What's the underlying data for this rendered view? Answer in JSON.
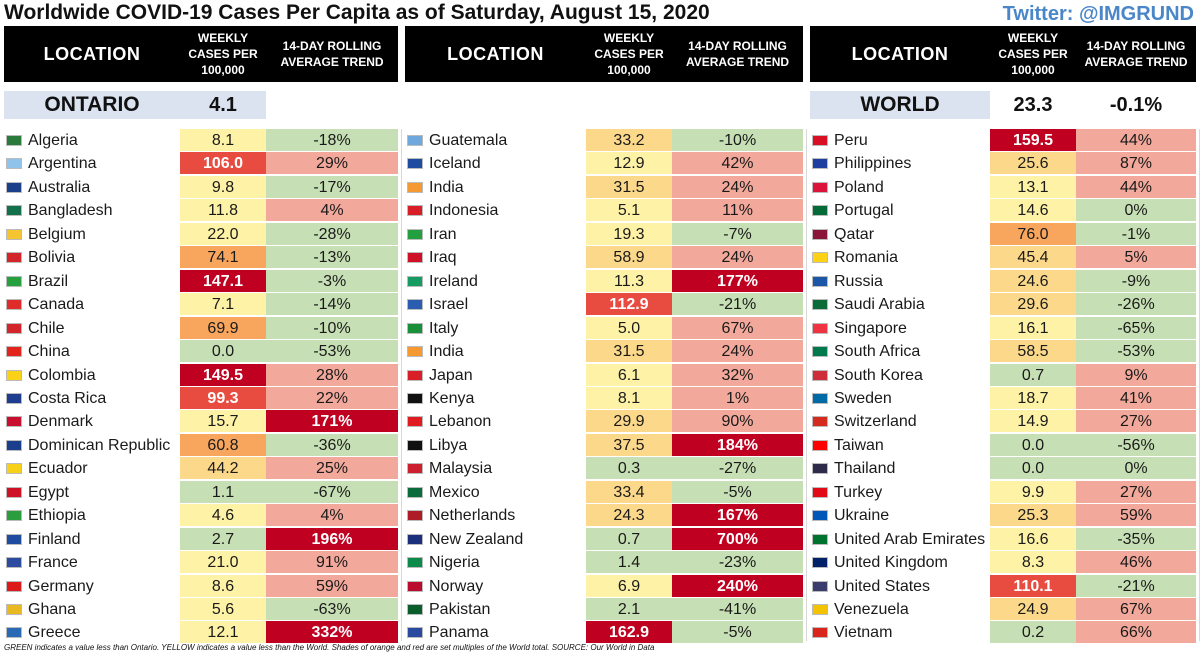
{
  "title": "Worldwide COVID-19 Cases Per Capita as of Saturday, August 15, 2020",
  "twitter": "Twitter: @IMGRUND",
  "headers": {
    "location": "LOCATION",
    "weekly": [
      "WEEKLY",
      "CASES PER",
      "100,000"
    ],
    "trend": [
      "14-DAY ROLLING",
      "AVERAGE TREND"
    ]
  },
  "ontario": {
    "label": "ONTARIO",
    "value": "4.1"
  },
  "world": {
    "label": "WORLD",
    "value": "23.3",
    "trend": "-0.1%"
  },
  "colors": {
    "green": "#c6dfb4",
    "yellow": "#fef2a6",
    "orange_light": "#fcd98a",
    "orange": "#f8a65e",
    "red_light": "#f2a89a",
    "red": "#e84b3f",
    "dark_red": "#c00020"
  },
  "columns": [
    {
      "rows": [
        {
          "name": "Algeria",
          "cases": "8.1",
          "cc": "yellow",
          "trend": "-18%",
          "tc": "green",
          "flag": "#2a7a3b"
        },
        {
          "name": "Argentina",
          "cases": "106.0",
          "cc": "red",
          "trend": "29%",
          "tc": "red_light",
          "flag": "#8fc3ea"
        },
        {
          "name": "Australia",
          "cases": "9.8",
          "cc": "yellow",
          "trend": "-17%",
          "tc": "green",
          "flag": "#1c3f8a"
        },
        {
          "name": "Bangladesh",
          "cases": "11.8",
          "cc": "yellow",
          "trend": "4%",
          "tc": "red_light",
          "flag": "#12704a"
        },
        {
          "name": "Belgium",
          "cases": "22.0",
          "cc": "yellow",
          "trend": "-28%",
          "tc": "green",
          "flag": "#f4c531"
        },
        {
          "name": "Bolivia",
          "cases": "74.1",
          "cc": "orange",
          "trend": "-13%",
          "tc": "green",
          "flag": "#d3262a"
        },
        {
          "name": "Brazil",
          "cases": "147.1",
          "cc": "dark_red",
          "trend": "-3%",
          "tc": "green",
          "flag": "#27a040"
        },
        {
          "name": "Canada",
          "cases": "7.1",
          "cc": "yellow",
          "trend": "-14%",
          "tc": "green",
          "flag": "#e02b2b"
        },
        {
          "name": "Chile",
          "cases": "69.9",
          "cc": "orange",
          "trend": "-10%",
          "tc": "green",
          "flag": "#d3262a"
        },
        {
          "name": "China",
          "cases": "0.0",
          "cc": "green",
          "trend": "-53%",
          "tc": "green",
          "flag": "#e1251b"
        },
        {
          "name": "Colombia",
          "cases": "149.5",
          "cc": "dark_red",
          "trend": "28%",
          "tc": "red_light",
          "flag": "#f9d116"
        },
        {
          "name": "Costa Rica",
          "cases": "99.3",
          "cc": "red",
          "trend": "22%",
          "tc": "red_light",
          "flag": "#1f3d8f"
        },
        {
          "name": "Denmark",
          "cases": "15.7",
          "cc": "yellow",
          "trend": "171%",
          "tc": "dark_red",
          "flag": "#c8102e"
        },
        {
          "name": "Dominican Republic",
          "cases": "60.8",
          "cc": "orange",
          "trend": "-36%",
          "tc": "green",
          "flag": "#1a3e8c"
        },
        {
          "name": "Ecuador",
          "cases": "44.2",
          "cc": "orange_light",
          "trend": "25%",
          "tc": "red_light",
          "flag": "#f7d117"
        },
        {
          "name": "Egypt",
          "cases": "1.1",
          "cc": "green",
          "trend": "-67%",
          "tc": "green",
          "flag": "#ce1126"
        },
        {
          "name": "Ethiopia",
          "cases": "4.6",
          "cc": "yellow",
          "trend": "4%",
          "tc": "red_light",
          "flag": "#2a9d3f"
        },
        {
          "name": "Finland",
          "cases": "2.7",
          "cc": "green",
          "trend": "196%",
          "tc": "dark_red",
          "flag": "#1f4c9f"
        },
        {
          "name": "France",
          "cases": "21.0",
          "cc": "yellow",
          "trend": "91%",
          "tc": "red_light",
          "flag": "#2c4aa0"
        },
        {
          "name": "Germany",
          "cases": "8.6",
          "cc": "yellow",
          "trend": "59%",
          "tc": "red_light",
          "flag": "#dd1a1a"
        },
        {
          "name": "Ghana",
          "cases": "5.6",
          "cc": "yellow",
          "trend": "-63%",
          "tc": "green",
          "flag": "#e8b923"
        },
        {
          "name": "Greece",
          "cases": "12.1",
          "cc": "yellow",
          "trend": "332%",
          "tc": "dark_red",
          "flag": "#2a6ab4"
        }
      ]
    },
    {
      "rows": [
        {
          "name": "Guatemala",
          "cases": "33.2",
          "cc": "orange_light",
          "trend": "-10%",
          "tc": "green",
          "flag": "#6fa8dc"
        },
        {
          "name": "Iceland",
          "cases": "12.9",
          "cc": "yellow",
          "trend": "42%",
          "tc": "red_light",
          "flag": "#1f4c9f"
        },
        {
          "name": "India",
          "cases": "31.5",
          "cc": "orange_light",
          "trend": "24%",
          "tc": "red_light",
          "flag": "#f59a32"
        },
        {
          "name": "Indonesia",
          "cases": "5.1",
          "cc": "yellow",
          "trend": "11%",
          "tc": "red_light",
          "flag": "#d81e26"
        },
        {
          "name": "Iran",
          "cases": "19.3",
          "cc": "yellow",
          "trend": "-7%",
          "tc": "green",
          "flag": "#239f40"
        },
        {
          "name": "Iraq",
          "cases": "58.9",
          "cc": "orange_light",
          "trend": "24%",
          "tc": "red_light",
          "flag": "#ce1126"
        },
        {
          "name": "Ireland",
          "cases": "11.3",
          "cc": "yellow",
          "trend": "177%",
          "tc": "dark_red",
          "flag": "#169b62"
        },
        {
          "name": "Israel",
          "cases": "112.9",
          "cc": "red",
          "trend": "-21%",
          "tc": "green",
          "flag": "#2a5db0"
        },
        {
          "name": "Italy",
          "cases": "5.0",
          "cc": "yellow",
          "trend": "67%",
          "tc": "red_light",
          "flag": "#1a8f3a"
        },
        {
          "name": "India",
          "cases": "31.5",
          "cc": "orange_light",
          "trend": "24%",
          "tc": "red_light",
          "flag": "#f59a32"
        },
        {
          "name": "Japan",
          "cases": "6.1",
          "cc": "yellow",
          "trend": "32%",
          "tc": "red_light",
          "flag": "#d81e26"
        },
        {
          "name": "Kenya",
          "cases": "8.1",
          "cc": "yellow",
          "trend": "1%",
          "tc": "red_light",
          "flag": "#111111"
        },
        {
          "name": "Lebanon",
          "cases": "29.9",
          "cc": "orange_light",
          "trend": "90%",
          "tc": "red_light",
          "flag": "#e01b22"
        },
        {
          "name": "Libya",
          "cases": "37.5",
          "cc": "orange_light",
          "trend": "184%",
          "tc": "dark_red",
          "flag": "#111111"
        },
        {
          "name": "Malaysia",
          "cases": "0.3",
          "cc": "green",
          "trend": "-27%",
          "tc": "green",
          "flag": "#cc1f2f"
        },
        {
          "name": "Mexico",
          "cases": "33.4",
          "cc": "orange_light",
          "trend": "-5%",
          "tc": "green",
          "flag": "#0b6b3a"
        },
        {
          "name": "Netherlands",
          "cases": "24.3",
          "cc": "orange_light",
          "trend": "167%",
          "tc": "dark_red",
          "flag": "#ae1c28"
        },
        {
          "name": "New Zealand",
          "cases": "0.7",
          "cc": "green",
          "trend": "700%",
          "tc": "dark_red",
          "flag": "#1c2f7a"
        },
        {
          "name": "Nigeria",
          "cases": "1.4",
          "cc": "green",
          "trend": "-23%",
          "tc": "green",
          "flag": "#0b8a4a"
        },
        {
          "name": "Norway",
          "cases": "6.9",
          "cc": "yellow",
          "trend": "240%",
          "tc": "dark_red",
          "flag": "#ba0c2f"
        },
        {
          "name": "Pakistan",
          "cases": "2.1",
          "cc": "green",
          "trend": "-41%",
          "tc": "green",
          "flag": "#0b5d2c"
        },
        {
          "name": "Panama",
          "cases": "162.9",
          "cc": "dark_red",
          "trend": "-5%",
          "tc": "green",
          "flag": "#2a4aa0"
        }
      ]
    },
    {
      "rows": [
        {
          "name": "Peru",
          "cases": "159.5",
          "cc": "dark_red",
          "trend": "44%",
          "tc": "red_light",
          "flag": "#d91023"
        },
        {
          "name": "Philippines",
          "cases": "25.6",
          "cc": "orange_light",
          "trend": "87%",
          "tc": "red_light",
          "flag": "#1f3fa0"
        },
        {
          "name": "Poland",
          "cases": "13.1",
          "cc": "yellow",
          "trend": "44%",
          "tc": "red_light",
          "flag": "#dc143c"
        },
        {
          "name": "Portugal",
          "cases": "14.6",
          "cc": "yellow",
          "trend": "0%",
          "tc": "green",
          "flag": "#046a38"
        },
        {
          "name": "Qatar",
          "cases": "76.0",
          "cc": "orange",
          "trend": "-1%",
          "tc": "green",
          "flag": "#8a1538"
        },
        {
          "name": "Romania",
          "cases": "45.4",
          "cc": "orange_light",
          "trend": "5%",
          "tc": "red_light",
          "flag": "#fcd116"
        },
        {
          "name": "Russia",
          "cases": "24.6",
          "cc": "orange_light",
          "trend": "-9%",
          "tc": "green",
          "flag": "#1c57a7"
        },
        {
          "name": "Saudi Arabia",
          "cases": "29.6",
          "cc": "orange_light",
          "trend": "-26%",
          "tc": "green",
          "flag": "#0a6b38"
        },
        {
          "name": "Singapore",
          "cases": "16.1",
          "cc": "yellow",
          "trend": "-65%",
          "tc": "green",
          "flag": "#ef3340"
        },
        {
          "name": "South Africa",
          "cases": "58.5",
          "cc": "orange_light",
          "trend": "-53%",
          "tc": "green",
          "flag": "#007a4d"
        },
        {
          "name": "South Korea",
          "cases": "0.7",
          "cc": "green",
          "trend": "9%",
          "tc": "red_light",
          "flag": "#cd2e3a"
        },
        {
          "name": "Sweden",
          "cases": "18.7",
          "cc": "yellow",
          "trend": "41%",
          "tc": "red_light",
          "flag": "#006aa7"
        },
        {
          "name": "Switzerland",
          "cases": "14.9",
          "cc": "yellow",
          "trend": "27%",
          "tc": "red_light",
          "flag": "#d52b1e"
        },
        {
          "name": "Taiwan",
          "cases": "0.0",
          "cc": "green",
          "trend": "-56%",
          "tc": "green",
          "flag": "#fe0000"
        },
        {
          "name": "Thailand",
          "cases": "0.0",
          "cc": "green",
          "trend": "0%",
          "tc": "green",
          "flag": "#2d2a4a"
        },
        {
          "name": "Turkey",
          "cases": "9.9",
          "cc": "yellow",
          "trend": "27%",
          "tc": "red_light",
          "flag": "#e30a17"
        },
        {
          "name": "Ukraine",
          "cases": "25.3",
          "cc": "orange_light",
          "trend": "59%",
          "tc": "red_light",
          "flag": "#0057b7"
        },
        {
          "name": "United Arab Emirates",
          "cases": "16.6",
          "cc": "yellow",
          "trend": "-35%",
          "tc": "green",
          "flag": "#00732f"
        },
        {
          "name": "United Kingdom",
          "cases": "8.3",
          "cc": "yellow",
          "trend": "46%",
          "tc": "red_light",
          "flag": "#012169"
        },
        {
          "name": "United States",
          "cases": "110.1",
          "cc": "red",
          "trend": "-21%",
          "tc": "green",
          "flag": "#3c3b6e"
        },
        {
          "name": "Venezuela",
          "cases": "24.9",
          "cc": "orange_light",
          "trend": "67%",
          "tc": "red_light",
          "flag": "#f4c300"
        },
        {
          "name": "Vietnam",
          "cases": "0.2",
          "cc": "green",
          "trend": "66%",
          "tc": "red_light",
          "flag": "#da251d"
        }
      ]
    }
  ],
  "footnote": "GREEN indicates a value less than Ontario. YELLOW indicates a value less than the World. Shades of orange and red are set multiples of the World total. SOURCE: Our World in Data"
}
